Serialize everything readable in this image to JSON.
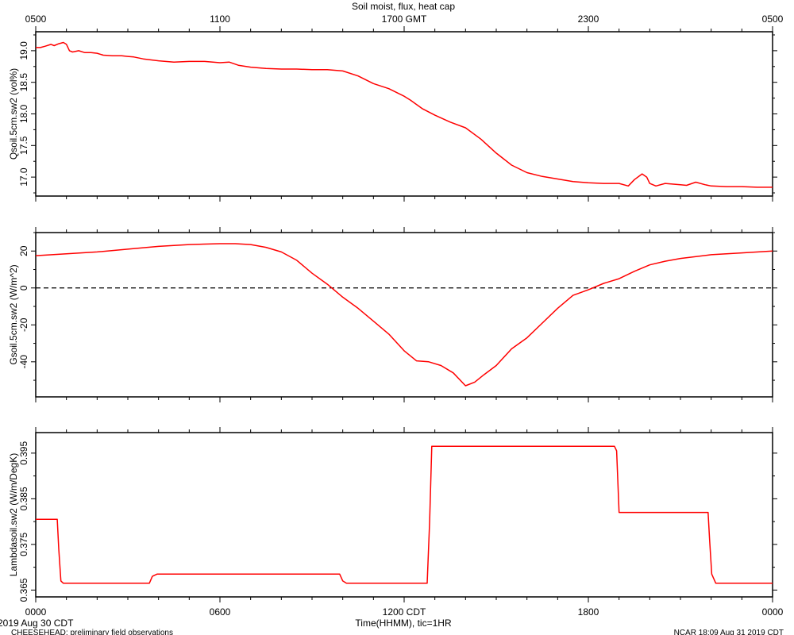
{
  "title": "Soil moist, flux, heat cap",
  "top_axis_ticks": [
    "0500",
    "1100",
    "1700 GMT",
    "2300",
    "0500"
  ],
  "bottom_axis_ticks": [
    "0000",
    "0600",
    "1200 CDT",
    "1800",
    "0000"
  ],
  "xlabel": "Time(HHMM), tic=1HR",
  "start_label": "2019 Aug 30 CDT",
  "footer_left": "CHEESEHEAD: preliminary field observations",
  "footer_right": "NCAR 18:09 Aug 31 2019 CDT",
  "colors": {
    "series": "#ff0000",
    "axis": "#000000",
    "zero_line": "#000000"
  },
  "chart_data": [
    {
      "type": "line",
      "ylabel": "Qsoil.5cm.sw2 (vol%)",
      "ylim": [
        16.7,
        19.3
      ],
      "yticks": [
        "17.0",
        "17.5",
        "18.0",
        "18.5",
        "19.0"
      ],
      "x_hours": [
        0,
        0.15,
        0.3,
        0.5,
        0.6,
        0.75,
        0.9,
        1.0,
        1.1,
        1.2,
        1.4,
        1.6,
        1.8,
        2.0,
        2.2,
        2.5,
        2.8,
        3.0,
        3.2,
        3.5,
        4.0,
        4.5,
        5.0,
        5.5,
        6.0,
        6.3,
        6.6,
        7.0,
        7.5,
        8.0,
        8.5,
        9.0,
        9.5,
        10.0,
        10.5,
        11.0,
        11.5,
        12.0,
        12.2,
        12.6,
        13.0,
        13.5,
        14.0,
        14.5,
        15.0,
        15.5,
        16.0,
        16.5,
        17.0,
        17.5,
        18.0,
        18.5,
        19.0,
        19.3,
        19.5,
        19.75,
        19.9,
        20.0,
        20.2,
        20.5,
        21.0,
        21.2,
        21.5,
        21.8,
        22.0,
        22.5,
        23.0,
        23.5,
        24.0
      ],
      "values": [
        19.05,
        19.05,
        19.07,
        19.1,
        19.08,
        19.11,
        19.13,
        19.1,
        19.0,
        18.98,
        19.0,
        18.97,
        18.97,
        18.96,
        18.93,
        18.92,
        18.92,
        18.91,
        18.9,
        18.87,
        18.84,
        18.82,
        18.83,
        18.83,
        18.81,
        18.82,
        18.77,
        18.74,
        18.72,
        18.71,
        18.71,
        18.7,
        18.7,
        18.68,
        18.6,
        18.48,
        18.4,
        18.28,
        18.22,
        18.08,
        17.98,
        17.87,
        17.78,
        17.6,
        17.38,
        17.19,
        17.07,
        17.01,
        16.97,
        16.93,
        16.91,
        16.9,
        16.9,
        16.86,
        16.96,
        17.05,
        17.0,
        16.9,
        16.86,
        16.9,
        16.88,
        16.87,
        16.92,
        16.88,
        16.86,
        16.85,
        16.85,
        16.84,
        16.84
      ]
    },
    {
      "type": "line",
      "ylabel": "Gsoil.5cm.sw2 (W/m^2)",
      "ylim": [
        -59,
        30
      ],
      "yticks": [
        "-40",
        "-20",
        "0",
        "20"
      ],
      "reference_line": 0,
      "x_hours": [
        0,
        1,
        2,
        3,
        4,
        5,
        6,
        6.5,
        7,
        7.5,
        8,
        8.5,
        9,
        9.5,
        10,
        10.5,
        11,
        11.5,
        12,
        12.4,
        12.8,
        13.2,
        13.6,
        14,
        14.3,
        14.6,
        15,
        15.5,
        16,
        16.5,
        17,
        17.5,
        18,
        18.5,
        19,
        19.5,
        20,
        20.5,
        21,
        22,
        23,
        24
      ],
      "values": [
        17.5,
        18.5,
        19.5,
        21,
        22.5,
        23.5,
        24,
        24,
        23.5,
        22,
        19.5,
        15,
        8,
        2,
        -5,
        -11,
        -18,
        -25,
        -34,
        -39.5,
        -40,
        -42,
        -46,
        -53,
        -51,
        -47,
        -42,
        -33,
        -27,
        -19,
        -11,
        -4,
        -1,
        2.5,
        5,
        9,
        12.5,
        14.5,
        16,
        18,
        19,
        20
      ]
    },
    {
      "type": "line",
      "ylabel": "Lambdasoil.sw2 (W/m/DegK)",
      "ylim": [
        0.3635,
        0.3995
      ],
      "yticks": [
        "0.365",
        "0.375",
        "0.385",
        "0.395"
      ],
      "x_hours": [
        0,
        0.7,
        0.75,
        0.82,
        0.9,
        3.7,
        3.8,
        3.95,
        9.9,
        10.0,
        10.12,
        12.75,
        12.83,
        12.9,
        18.85,
        18.92,
        19.0,
        21.9,
        21.95,
        22.02,
        22.15,
        24
      ],
      "values": [
        0.3805,
        0.3805,
        0.374,
        0.367,
        0.3665,
        0.3665,
        0.368,
        0.3685,
        0.3685,
        0.367,
        0.3665,
        0.3665,
        0.38,
        0.3965,
        0.3965,
        0.3955,
        0.382,
        0.382,
        0.376,
        0.3685,
        0.3665,
        0.3665
      ]
    }
  ]
}
